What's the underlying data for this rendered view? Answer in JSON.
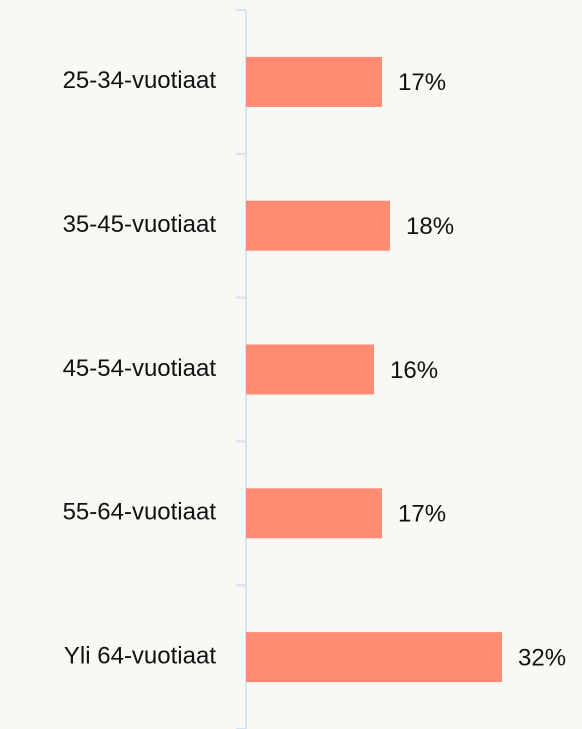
{
  "chart_data": {
    "type": "bar",
    "orientation": "horizontal",
    "categories": [
      "25-34-vuotiaat",
      "35-45-vuotiaat",
      "45-54-vuotiaat",
      "55-64-vuotiaat",
      "Yli 64-vuotiaat"
    ],
    "values": [
      17,
      18,
      16,
      17,
      32
    ],
    "value_labels": [
      "17%",
      "18%",
      "16%",
      "17%",
      "32%"
    ],
    "color": "#ff8c72"
  }
}
